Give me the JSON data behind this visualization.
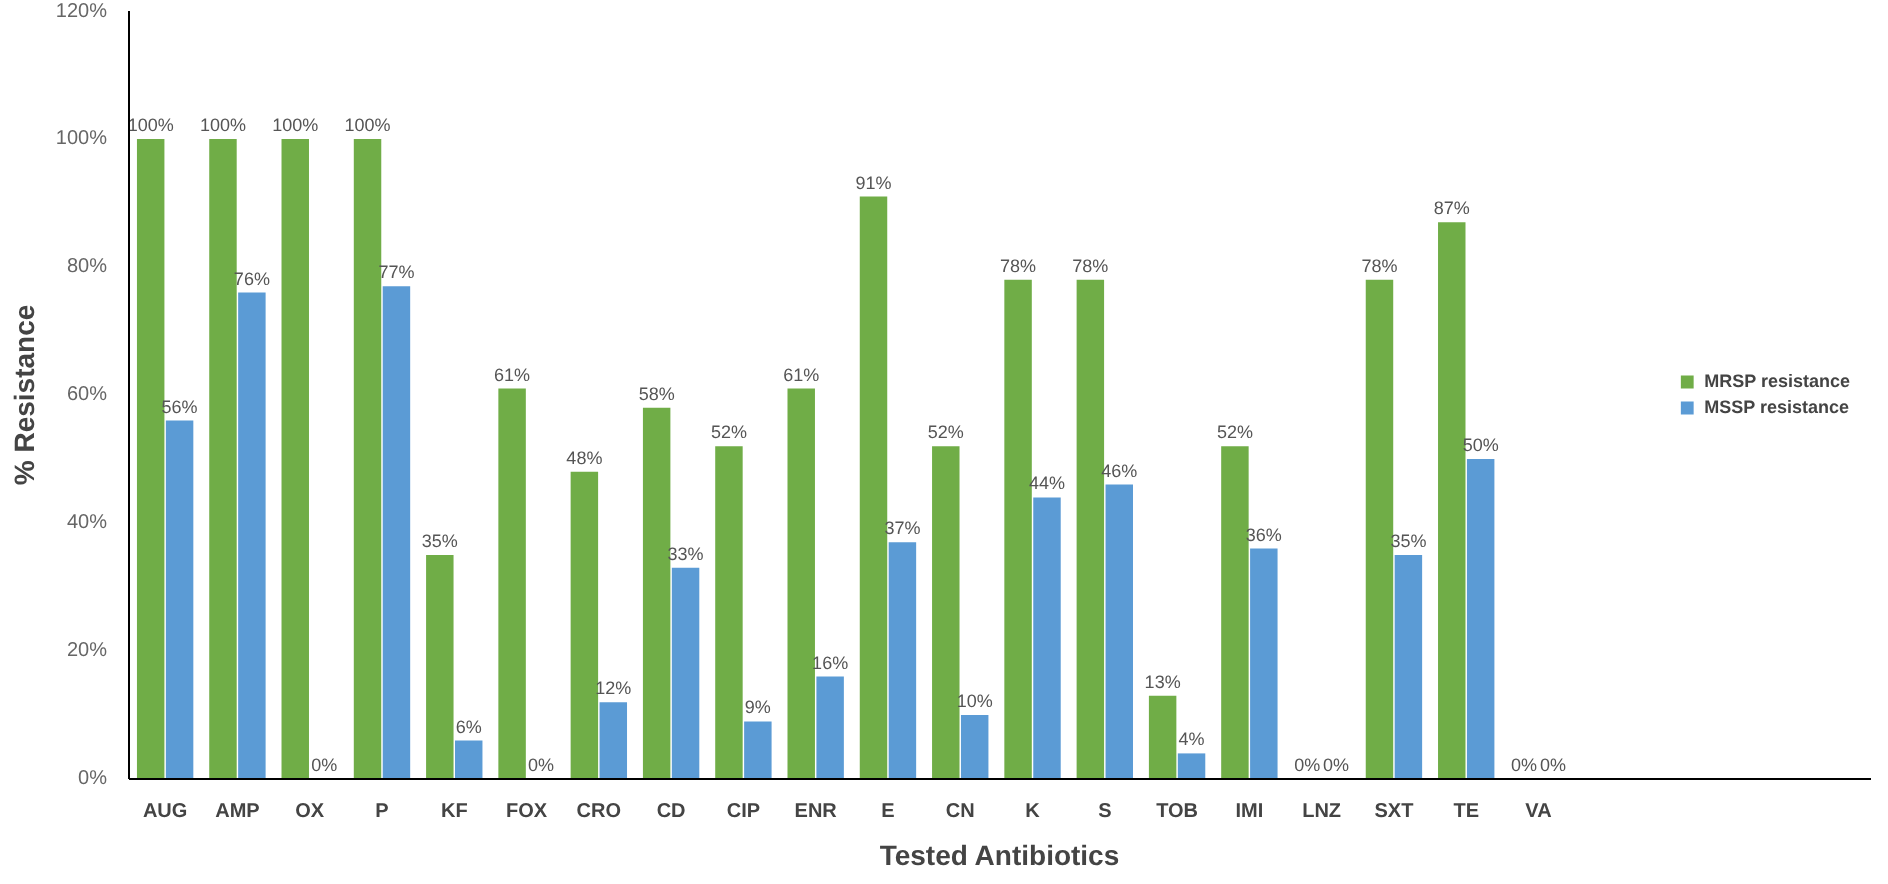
{
  "chart_data": {
    "type": "bar",
    "xlabel": "Tested Antibiotics",
    "ylabel": "% Resistance",
    "categories": [
      "AUG",
      "AMP",
      "OX",
      "P",
      "KF",
      "FOX",
      "CRO",
      "CD",
      "CIP",
      "ENR",
      "E",
      "CN",
      "K",
      "S",
      "TOB",
      "IMI",
      "LNZ",
      "SXT",
      "TE",
      "VA"
    ],
    "series": [
      {
        "name": "MRSP resistance",
        "color": "#70ad47",
        "values": [
          100,
          100,
          100,
          100,
          35,
          61,
          48,
          58,
          52,
          61,
          91,
          52,
          78,
          78,
          13,
          52,
          0,
          78,
          87,
          0
        ],
        "value_labels": [
          "100%",
          "100%",
          "100%",
          "100%",
          "35%",
          "61%",
          "48%",
          "58%",
          "52%",
          "61%",
          "91%",
          "52%",
          "78%",
          "78%",
          "13%",
          "52%",
          "0%",
          "78%",
          "87%",
          "0%"
        ]
      },
      {
        "name": "MSSP resistance",
        "color": "#5b9bd5",
        "values": [
          56,
          76,
          0,
          77,
          6,
          0,
          12,
          33,
          9,
          16,
          37,
          10,
          44,
          46,
          4,
          36,
          0,
          35,
          50,
          0
        ],
        "value_labels": [
          "56%",
          "76%",
          "0%",
          "77%",
          "6%",
          "0%",
          "12%",
          "33%",
          "9%",
          "16%",
          "37%",
          "10%",
          "44%",
          "46%",
          "4%",
          "36%",
          "0%",
          "35%",
          "50%",
          "0%"
        ]
      }
    ],
    "ylim": [
      0,
      120
    ],
    "yticks": [
      {
        "value": 0,
        "label": "0%"
      },
      {
        "value": 20,
        "label": "20%"
      },
      {
        "value": 40,
        "label": "40%"
      },
      {
        "value": 60,
        "label": "60%"
      },
      {
        "value": 80,
        "label": "80%"
      },
      {
        "value": 100,
        "label": "100%"
      },
      {
        "value": 120,
        "label": "120%"
      }
    ],
    "grid": false,
    "legend": "right"
  }
}
